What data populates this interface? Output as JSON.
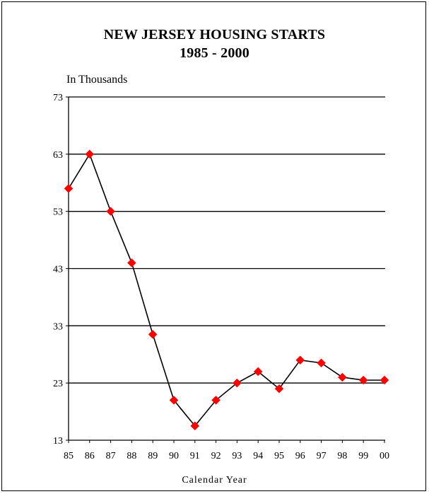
{
  "chart_data": {
    "type": "line",
    "title": [
      "NEW JERSEY HOUSING STARTS",
      "1985 - 2000"
    ],
    "ylabel": "In Thousands",
    "xlabel": "Calendar Year",
    "categories": [
      "85",
      "86",
      "87",
      "88",
      "89",
      "90",
      "91",
      "92",
      "93",
      "94",
      "95",
      "96",
      "97",
      "98",
      "99",
      "00"
    ],
    "values": [
      57,
      63,
      53,
      44,
      31.5,
      20,
      15.5,
      20,
      23,
      25,
      22,
      27,
      26.5,
      24,
      23.5,
      23.5
    ],
    "ylim": [
      13,
      73
    ],
    "yticks": [
      13,
      23,
      33,
      43,
      53,
      63,
      73
    ],
    "grid": true,
    "line_color": "#000000",
    "marker_color": "#ff0000",
    "marker": "diamond"
  }
}
